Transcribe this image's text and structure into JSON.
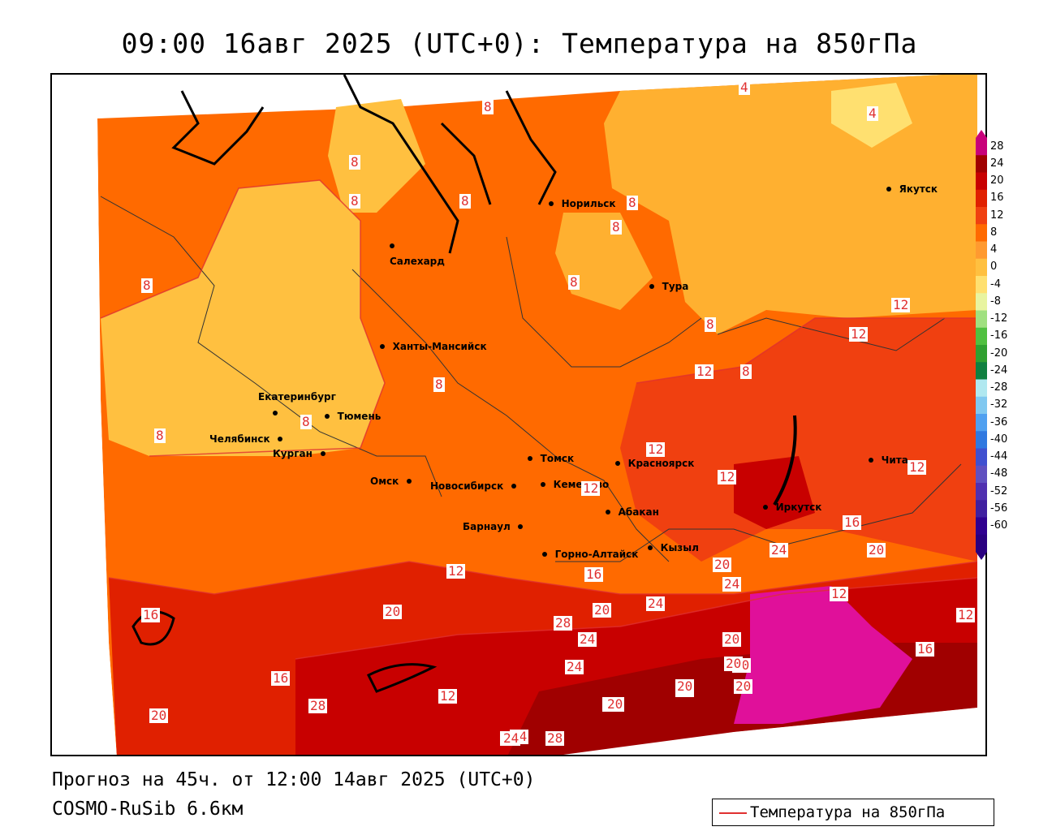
{
  "title": "09:00 16авг 2025 (UTC+0): Температура на 850гПа",
  "footer": {
    "forecast": "Прогноз на 45ч. от 12:00 14авг 2025 (UTC+0)",
    "model": "COSMO-RuSib 6.6км"
  },
  "legend": {
    "label": "Температура на 850гПа",
    "line_color": "#e03030"
  },
  "colorbar": {
    "ticks": [
      "28",
      "24",
      "20",
      "16",
      "12",
      "8",
      "4",
      "0",
      "-4",
      "-8",
      "-12",
      "-16",
      "-20",
      "-24",
      "-28",
      "-32",
      "-36",
      "-40",
      "-44",
      "-48",
      "-52",
      "-56",
      "-60"
    ],
    "colors": [
      "#c8007a",
      "#a00000",
      "#c80000",
      "#e02000",
      "#f04010",
      "#ff6a00",
      "#ff9a30",
      "#ffc040",
      "#ffe070",
      "#e8f4a0",
      "#a0e080",
      "#50c040",
      "#30a030",
      "#108040",
      "#b0e8f0",
      "#80c8f0",
      "#50a0f0",
      "#3078e0",
      "#4050d0",
      "#6050c0",
      "#5030b0",
      "#4020a0",
      "#300090",
      "#2a0080"
    ]
  },
  "cities": [
    {
      "name": "Норильск"
    },
    {
      "name": "Якутск"
    },
    {
      "name": "Салехард"
    },
    {
      "name": "Тура"
    },
    {
      "name": "Ханты-Мансийск"
    },
    {
      "name": "Екатеринбург"
    },
    {
      "name": "Тюмень"
    },
    {
      "name": "Челябинск"
    },
    {
      "name": "Курган"
    },
    {
      "name": "Омск"
    },
    {
      "name": "Новосибирск"
    },
    {
      "name": "Томск"
    },
    {
      "name": "Кемерово"
    },
    {
      "name": "Красноярск"
    },
    {
      "name": "Абакан"
    },
    {
      "name": "Барнаул"
    },
    {
      "name": "Горно-Алтайск"
    },
    {
      "name": "Кызыл"
    },
    {
      "name": "Иркутск"
    },
    {
      "name": "Чита"
    }
  ],
  "contour_labels": [
    "8",
    "4",
    "4",
    "8",
    "8",
    "8",
    "8",
    "8",
    "8",
    "8",
    "8",
    "8",
    "12",
    "12",
    "8",
    "8",
    "8",
    "12",
    "12",
    "12",
    "12",
    "16",
    "12",
    "16",
    "20",
    "24",
    "20",
    "24",
    "24",
    "20",
    "16",
    "20",
    "28",
    "24",
    "24",
    "28",
    "12",
    "16",
    "12",
    "12",
    "16",
    "20",
    "24",
    "20",
    "20",
    "24",
    "24",
    "20",
    "28",
    "20",
    "20",
    "16",
    "24",
    "20",
    "12"
  ]
}
